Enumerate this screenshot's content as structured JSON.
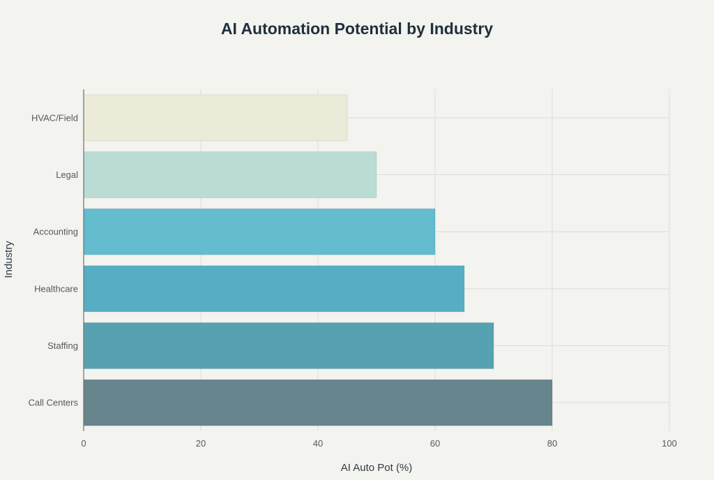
{
  "chart_data": {
    "type": "bar",
    "orientation": "horizontal",
    "title": "AI Automation Potential by Industry",
    "xlabel": "AI Auto Pot (%)",
    "ylabel": "Industry",
    "categories": [
      "HVAC/Field",
      "Legal",
      "Accounting",
      "Healthcare",
      "Staffing",
      "Call Centers"
    ],
    "values": [
      45,
      50,
      60,
      65,
      70,
      80
    ],
    "colors": [
      "#ecebd9",
      "#badcd5",
      "#64bccf",
      "#56adc4",
      "#57a2b0",
      "#66858d"
    ],
    "xlim": [
      0,
      100
    ],
    "xticks": [
      0,
      20,
      40,
      60,
      80,
      100
    ],
    "grid": true,
    "legend": "none"
  }
}
